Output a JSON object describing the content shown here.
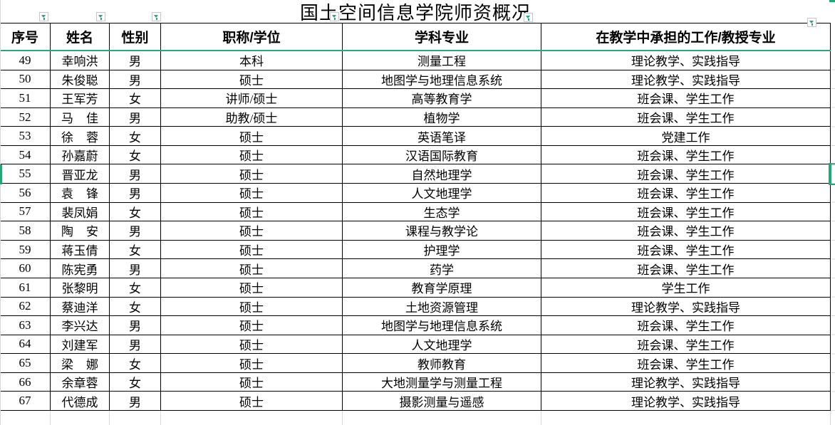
{
  "title": "国土空间信息学院师资概况",
  "columns": [
    {
      "label": "序号"
    },
    {
      "label": "姓名"
    },
    {
      "label": "性别"
    },
    {
      "label": "职称/学位"
    },
    {
      "label": "学科专业"
    },
    {
      "label": "在教学中承担的工作/教授专业"
    }
  ],
  "rows": [
    {
      "no": "49",
      "name": "幸响洪",
      "gender": "男",
      "degree": "本科",
      "major": "测量工程",
      "work": "理论教学、实践指导"
    },
    {
      "no": "50",
      "name": "朱俊聪",
      "gender": "男",
      "degree": "硕士",
      "major": "地图学与地理信息系统",
      "work": "理论教学、实践指导"
    },
    {
      "no": "51",
      "name": "王军芳",
      "gender": "女",
      "degree": "讲师/硕士",
      "major": "高等教育学",
      "work": "班会课、学生工作"
    },
    {
      "no": "52",
      "name": "马佳",
      "gender": "男",
      "degree": "助教/硕士",
      "major": "植物学",
      "work": "班会课、学生工作"
    },
    {
      "no": "53",
      "name": "徐蓉",
      "gender": "女",
      "degree": "硕士",
      "major": "英语笔译",
      "work": "党建工作"
    },
    {
      "no": "54",
      "name": "孙嘉蔚",
      "gender": "女",
      "degree": "硕士",
      "major": "汉语国际教育",
      "work": "班会课、学生工作"
    },
    {
      "no": "55",
      "name": "晋亚龙",
      "gender": "男",
      "degree": "硕士",
      "major": "自然地理学",
      "work": "班会课、学生工作"
    },
    {
      "no": "56",
      "name": "袁锋",
      "gender": "男",
      "degree": "硕士",
      "major": "人文地理学",
      "work": "班会课、学生工作"
    },
    {
      "no": "57",
      "name": "裴凤娟",
      "gender": "女",
      "degree": "硕士",
      "major": "生态学",
      "work": "班会课、学生工作"
    },
    {
      "no": "58",
      "name": "陶安",
      "gender": "男",
      "degree": "硕士",
      "major": "课程与教学论",
      "work": "班会课、学生工作"
    },
    {
      "no": "59",
      "name": "蒋玉倩",
      "gender": "女",
      "degree": "硕士",
      "major": "护理学",
      "work": "班会课、学生工作"
    },
    {
      "no": "60",
      "name": "陈宪勇",
      "gender": "男",
      "degree": "硕士",
      "major": "药学",
      "work": "班会课、学生工作"
    },
    {
      "no": "61",
      "name": "张黎明",
      "gender": "女",
      "degree": "硕士",
      "major": "教育学原理",
      "work": "学生工作"
    },
    {
      "no": "62",
      "name": "蔡迪洋",
      "gender": "女",
      "degree": "硕士",
      "major": "土地资源管理",
      "work": "理论教学、实践指导"
    },
    {
      "no": "63",
      "name": "李兴达",
      "gender": "男",
      "degree": "硕士",
      "major": "地图学与地理信息系统",
      "work": "班会课、学生工作"
    },
    {
      "no": "64",
      "name": "刘建军",
      "gender": "男",
      "degree": "硕士",
      "major": "人文地理学",
      "work": "班会课、学生工作"
    },
    {
      "no": "65",
      "name": "梁娜",
      "gender": "女",
      "degree": "硕士",
      "major": "教师教育",
      "work": "班会课、学生工作"
    },
    {
      "no": "66",
      "name": "余章蓉",
      "gender": "女",
      "degree": "硕士",
      "major": "大地测量学与测量工程",
      "work": "理论教学、实践指导"
    },
    {
      "no": "67",
      "name": "代德成",
      "gender": "男",
      "degree": "硕士",
      "major": "摄影测量与遥感",
      "work": "理论教学、实践指导"
    }
  ],
  "selection": {
    "active_row": "55"
  },
  "colors": {
    "accent_green": "#21a876",
    "grid_black": "#000000",
    "grid_light": "#d9d9d9",
    "filter_button_border": "#c6c6c6"
  }
}
